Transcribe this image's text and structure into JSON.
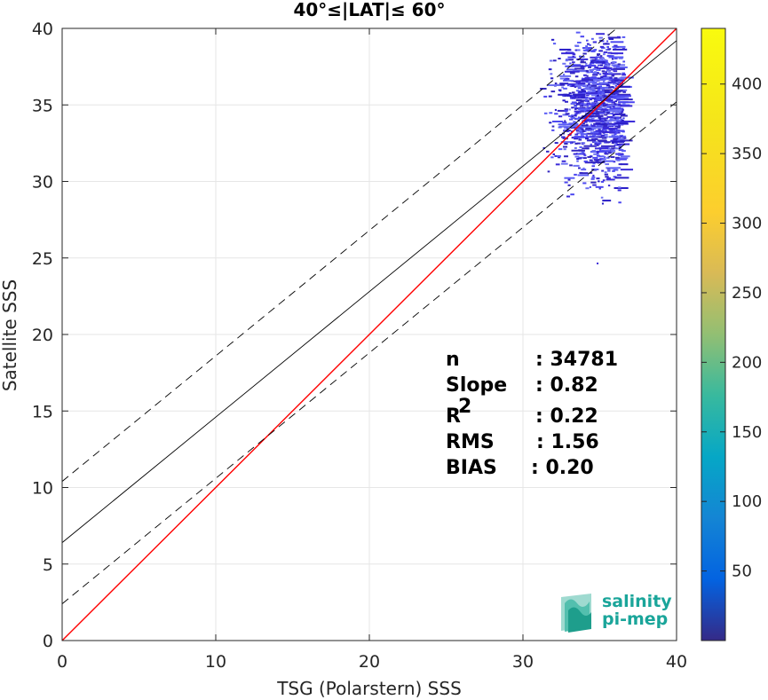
{
  "chart_data": {
    "type": "scatter",
    "title": "40°≤|LAT|≤ 60°",
    "xlabel": "TSG (Polarstern) SSS",
    "ylabel": "Satellite SSS",
    "xlim": [
      0,
      40
    ],
    "ylim": [
      0,
      40
    ],
    "xticks": [
      "0",
      "10",
      "20",
      "30",
      "40"
    ],
    "yticks": [
      "0",
      "5",
      "10",
      "15",
      "20",
      "25",
      "30",
      "35",
      "40"
    ],
    "grid": true,
    "plot_style": "2D density histogram",
    "density_cluster": {
      "x_range": [
        29.5,
        36.5
      ],
      "y_range": [
        28.0,
        39.8
      ],
      "peak": [
        35.0,
        35.0
      ],
      "outlier": [
        34.8,
        24.7
      ]
    },
    "lines": [
      {
        "role": "one-to-one",
        "color": "#ff0000",
        "style": "solid",
        "intercept": 0.0,
        "slope": 1.0
      },
      {
        "role": "regression",
        "color": "#000000",
        "style": "solid",
        "intercept": 6.4,
        "slope": 0.82
      },
      {
        "role": "upper-bound",
        "color": "#000000",
        "style": "dashed",
        "intercept": 10.4,
        "slope": 0.82
      },
      {
        "role": "lower-bound",
        "color": "#000000",
        "style": "dashed",
        "intercept": 2.4,
        "slope": 0.82
      }
    ],
    "stats": [
      {
        "label": "n",
        "value": ": 34781"
      },
      {
        "label": "Slope",
        "value": ": 0.82"
      },
      {
        "label": "R",
        "sup": "2",
        "value": ": 0.22"
      },
      {
        "label": "RMS",
        "value": ": 1.56"
      },
      {
        "label": "BIAS",
        "value": ": 0.20"
      }
    ],
    "colorbar": {
      "colormap": "parula",
      "range": [
        0,
        440
      ],
      "ticks": [
        "50",
        "100",
        "150",
        "200",
        "250",
        "300",
        "350",
        "400"
      ]
    }
  },
  "logo": {
    "line1": "salinity",
    "line2": "pi-mep",
    "color": "#1aa59a"
  }
}
